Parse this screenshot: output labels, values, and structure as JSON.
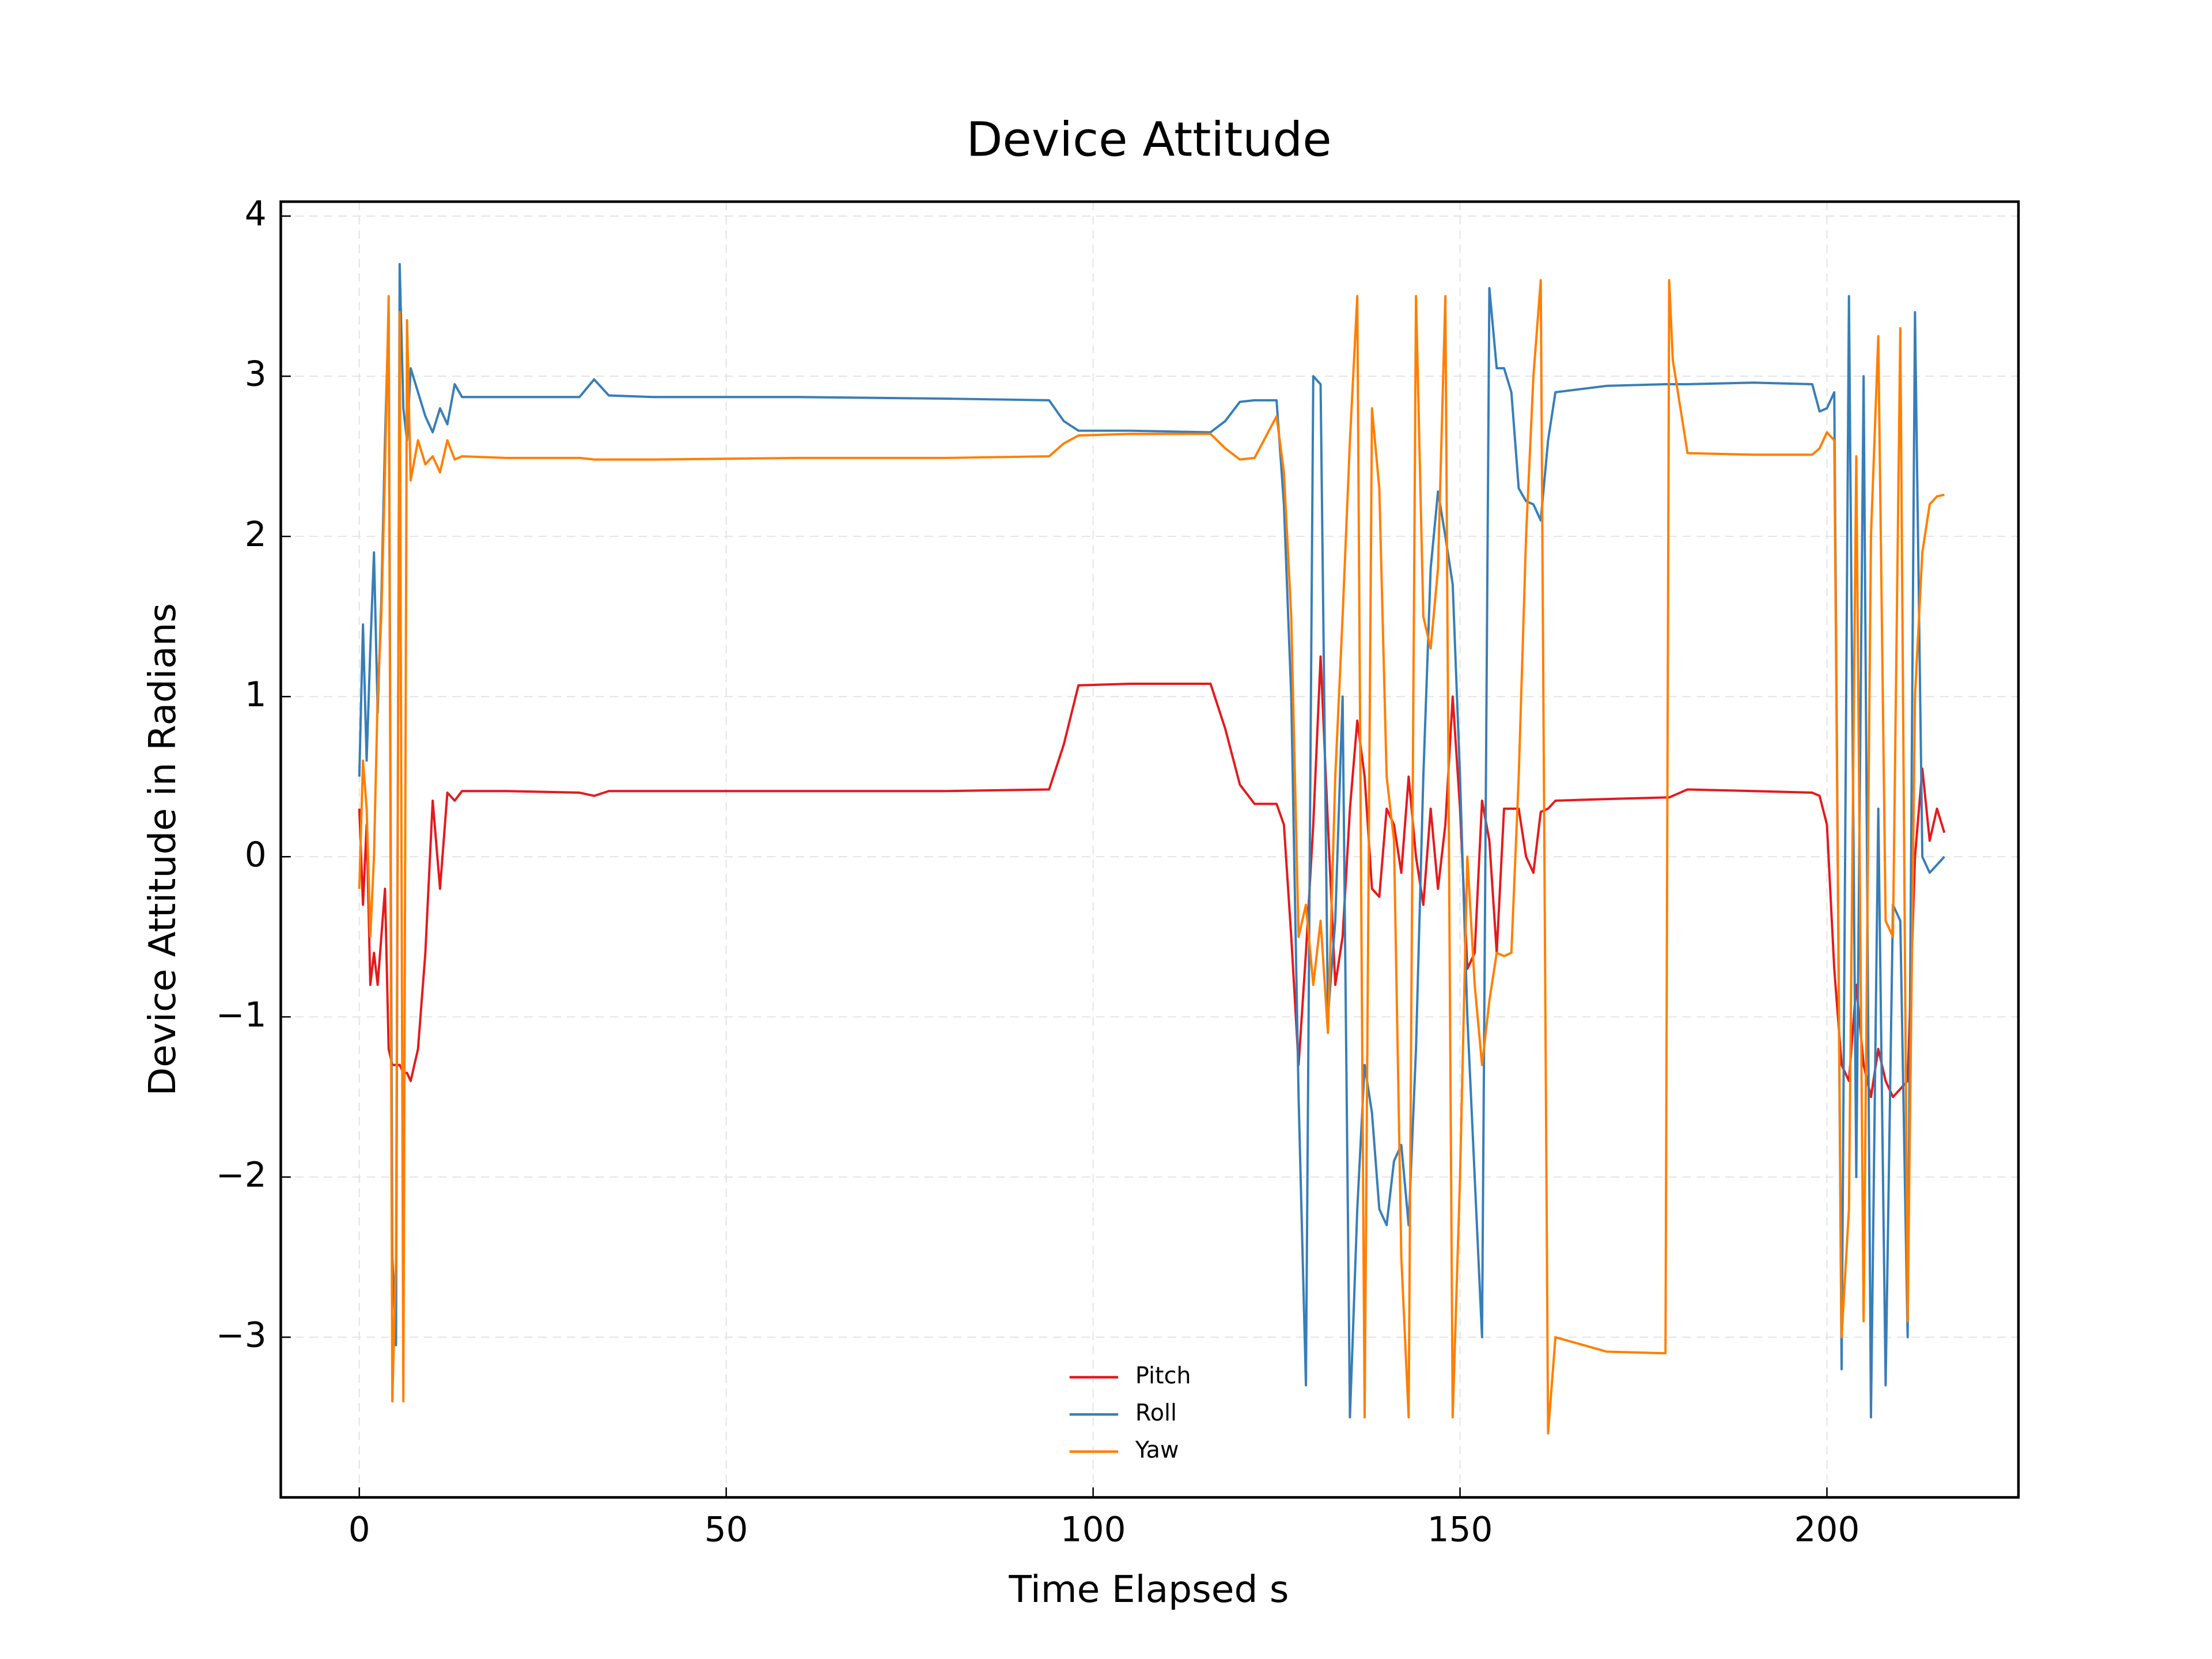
{
  "chart_data": {
    "type": "line",
    "title": "Device Attitude",
    "xlabel": "Time Elapsed s",
    "ylabel": "Device Attitude in Radians",
    "x": [
      0,
      0.5,
      1,
      1.5,
      2,
      2.5,
      3,
      3.5,
      4,
      4.5,
      5,
      5.5,
      6,
      6.5,
      7,
      8,
      9,
      10,
      11,
      12,
      13,
      14,
      20,
      30,
      32,
      34,
      40,
      60,
      80,
      94,
      96,
      98,
      105,
      116,
      118,
      120,
      122,
      125,
      126,
      127,
      128,
      129,
      130,
      131,
      132,
      133,
      134,
      135,
      136,
      137,
      138,
      139,
      140,
      141,
      142,
      143,
      144,
      145,
      146,
      147,
      148,
      149,
      150,
      151,
      152,
      153,
      154,
      155,
      156,
      157,
      158,
      159,
      160,
      161,
      162,
      163,
      170,
      178,
      178.5,
      179,
      181,
      190,
      198,
      199,
      200,
      201,
      202,
      203,
      204,
      205,
      206,
      207,
      208,
      209,
      210,
      211,
      212,
      213,
      214,
      215,
      216
    ],
    "series": [
      {
        "name": "Pitch",
        "color": "#e41a1c",
        "values": [
          0.3,
          -0.3,
          0.2,
          -0.8,
          -0.6,
          -0.8,
          -0.5,
          -0.2,
          -1.2,
          -1.3,
          -1.3,
          -1.3,
          -1.35,
          -1.35,
          -1.4,
          -1.2,
          -0.6,
          0.35,
          -0.2,
          0.4,
          0.35,
          0.41,
          0.41,
          0.4,
          0.38,
          0.41,
          0.41,
          0.41,
          0.41,
          0.42,
          0.7,
          1.07,
          1.08,
          1.08,
          0.8,
          0.45,
          0.33,
          0.33,
          0.2,
          -0.5,
          -1.3,
          -0.6,
          0.2,
          1.25,
          0.2,
          -0.8,
          -0.5,
          0.3,
          0.85,
          0.5,
          -0.2,
          -0.25,
          0.3,
          0.2,
          -0.1,
          0.5,
          0.0,
          -0.3,
          0.3,
          -0.2,
          0.2,
          1.0,
          0.3,
          -0.7,
          -0.6,
          0.35,
          0.1,
          -0.6,
          0.3,
          0.3,
          0.3,
          0.0,
          -0.1,
          0.28,
          0.3,
          0.35,
          0.36,
          0.37,
          0.37,
          0.38,
          0.42,
          0.41,
          0.4,
          0.38,
          0.2,
          -0.7,
          -1.3,
          -1.4,
          -0.8,
          -1.3,
          -1.5,
          -1.2,
          -1.4,
          -1.5,
          -1.45,
          -1.4,
          0.0,
          0.55,
          0.1,
          0.3,
          0.15
        ]
      },
      {
        "name": "Roll",
        "color": "#377eb8",
        "values": [
          0.5,
          1.45,
          0.6,
          1.3,
          1.9,
          0.9,
          1.6,
          2.6,
          3.4,
          -2.5,
          -3.05,
          3.7,
          2.8,
          2.6,
          3.05,
          2.9,
          2.75,
          2.65,
          2.8,
          2.7,
          2.95,
          2.87,
          2.87,
          2.87,
          2.98,
          2.88,
          2.87,
          2.87,
          2.86,
          2.85,
          2.72,
          2.66,
          2.66,
          2.65,
          2.72,
          2.84,
          2.85,
          2.85,
          2.2,
          1.0,
          -1.5,
          -3.3,
          3.0,
          2.95,
          -1.0,
          -0.4,
          1.0,
          -3.5,
          -2.2,
          -1.3,
          -1.6,
          -2.2,
          -2.3,
          -1.9,
          -1.8,
          -2.3,
          -1.2,
          0.5,
          1.8,
          2.28,
          2.0,
          1.7,
          0.5,
          -1.0,
          -2.0,
          -3.0,
          3.55,
          3.05,
          3.05,
          2.9,
          2.3,
          2.22,
          2.2,
          2.1,
          2.6,
          2.9,
          2.94,
          2.95,
          2.95,
          2.95,
          2.95,
          2.96,
          2.95,
          2.78,
          2.8,
          2.9,
          -3.2,
          3.5,
          -2.0,
          3.0,
          -3.5,
          0.3,
          -3.3,
          -0.3,
          -0.4,
          -3.0,
          3.4,
          0.0,
          -0.1,
          -0.05,
          0.0
        ]
      },
      {
        "name": "Yaw",
        "color": "#ff7f00",
        "values": [
          -0.2,
          0.6,
          0.3,
          -0.5,
          0.0,
          1.0,
          1.5,
          2.4,
          3.5,
          -3.4,
          -2.5,
          3.4,
          -3.4,
          3.35,
          2.35,
          2.6,
          2.45,
          2.5,
          2.4,
          2.6,
          2.48,
          2.5,
          2.49,
          2.49,
          2.48,
          2.48,
          2.48,
          2.49,
          2.49,
          2.5,
          2.58,
          2.63,
          2.64,
          2.64,
          2.55,
          2.48,
          2.49,
          2.75,
          2.4,
          1.5,
          -0.5,
          -0.3,
          -0.8,
          -0.4,
          -1.1,
          0.5,
          1.5,
          2.6,
          3.5,
          -3.5,
          2.8,
          2.3,
          0.5,
          0.1,
          -2.5,
          -3.5,
          3.5,
          1.5,
          1.3,
          1.8,
          3.5,
          -3.5,
          -2.0,
          0.0,
          -0.8,
          -1.3,
          -0.9,
          -0.6,
          -0.62,
          -0.6,
          0.5,
          2.0,
          3.0,
          3.6,
          -3.6,
          -3.0,
          -3.09,
          -3.1,
          3.6,
          3.1,
          2.52,
          2.51,
          2.51,
          2.55,
          2.65,
          2.6,
          -3.0,
          -2.2,
          2.5,
          -2.9,
          2.0,
          3.25,
          -0.4,
          -0.5,
          3.3,
          -2.9,
          1.0,
          1.9,
          2.2,
          2.25,
          2.26
        ]
      }
    ],
    "xlim": [
      -10.7,
      226.1
    ],
    "ylim": [
      -4.0,
      4.09
    ],
    "xticks": [
      0,
      50,
      100,
      150,
      200
    ],
    "yticks": [
      {
        "value": -3,
        "label": "−3"
      },
      {
        "value": -2,
        "label": "−2"
      },
      {
        "value": -1,
        "label": "−1"
      },
      0,
      1,
      2,
      3,
      4
    ],
    "grid": true,
    "legend": "lower center"
  }
}
